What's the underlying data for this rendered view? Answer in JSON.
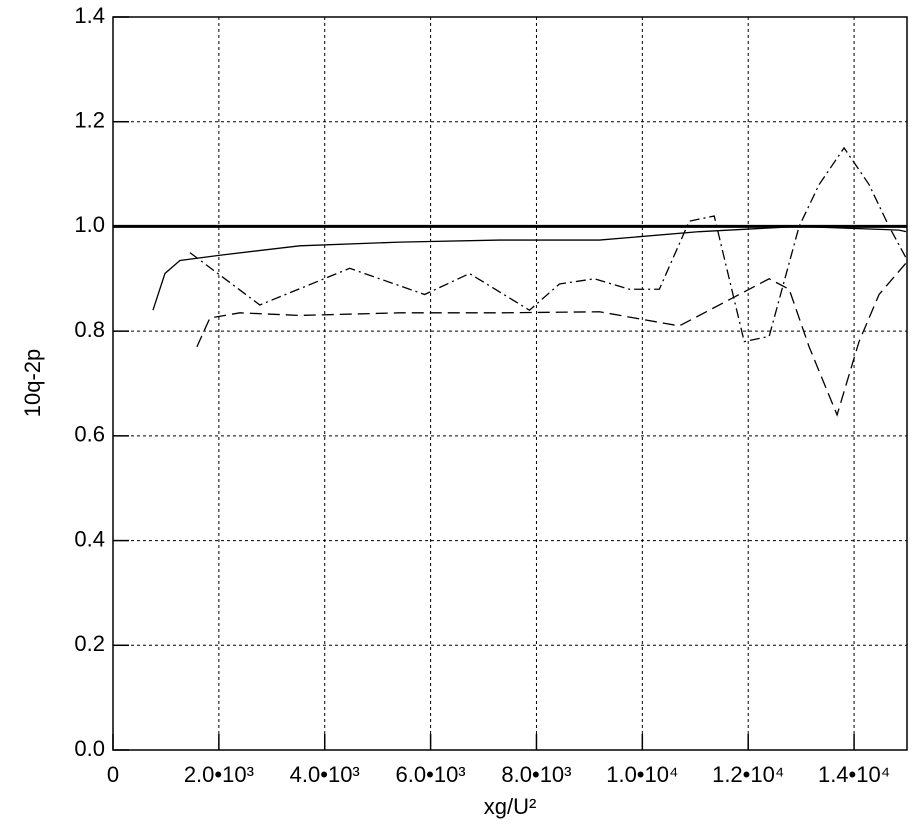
{
  "chart_data": {
    "type": "line",
    "x_label": "xg/U²",
    "y_label": "10q-2p",
    "xlim": [
      0,
      15000
    ],
    "ylim": [
      0,
      1.4
    ],
    "xticks": [
      0,
      {
        "value": 2000,
        "label": "2.0•10³"
      },
      {
        "value": 4000,
        "label": "4.0•10³"
      },
      {
        "value": 6000,
        "label": "6.0•10³"
      },
      {
        "value": 8000,
        "label": "8.0•10³"
      },
      {
        "value": 10000,
        "label": "1.0•10⁴"
      },
      {
        "value": 12000,
        "label": "1.2•10⁴"
      },
      {
        "value": 14000,
        "label": "1.4•10⁴"
      }
    ],
    "yticks": [
      {
        "value": 0,
        "label": "0.0"
      },
      0.2,
      0.4,
      0.6,
      0.8,
      {
        "value": 1,
        "label": "1.0"
      },
      1.2,
      1.4
    ],
    "grid": true,
    "series": [
      {
        "color": "#000000",
        "dash": "solid",
        "width": 3,
        "x": [
          0,
          15000
        ],
        "values": [
          1.0,
          1.0
        ]
      },
      {
        "color": "#000000",
        "dash": "solid",
        "width": 1.3,
        "x": [
          755,
          981,
          1264,
          2019,
          3528,
          5415,
          7302,
          9189,
          11075,
          12962,
          14849,
          14981
        ],
        "values": [
          0.84,
          0.91,
          0.935,
          0.945,
          0.963,
          0.97,
          0.974,
          0.974,
          0.99,
          1.0,
          0.993,
          0.99
        ]
      },
      {
        "color": "#000000",
        "dash": "dashdot",
        "width": 1.3,
        "x": [
          1453,
          2774,
          4472,
          5887,
          6736,
          7868,
          8434,
          9094,
          9755,
          10321,
          10887,
          11358,
          11925,
          12396,
          12962,
          13340,
          13811,
          14283,
          14660,
          14981
        ],
        "values": [
          0.95,
          0.85,
          0.92,
          0.87,
          0.91,
          0.84,
          0.89,
          0.9,
          0.88,
          0.88,
          1.01,
          1.02,
          0.78,
          0.79,
          1.0,
          1.08,
          1.15,
          1.08,
          1.0,
          0.94
        ]
      },
      {
        "color": "#000000",
        "dash": "dashed",
        "width": 1.3,
        "x": [
          1585,
          1830,
          2396,
          3528,
          5415,
          7302,
          9189,
          10698,
          11642,
          12396,
          12774,
          13151,
          13679,
          14094,
          14472,
          14981
        ],
        "values": [
          0.77,
          0.825,
          0.835,
          0.83,
          0.835,
          0.835,
          0.837,
          0.81,
          0.86,
          0.9,
          0.88,
          0.77,
          0.64,
          0.78,
          0.87,
          0.93
        ]
      }
    ]
  }
}
